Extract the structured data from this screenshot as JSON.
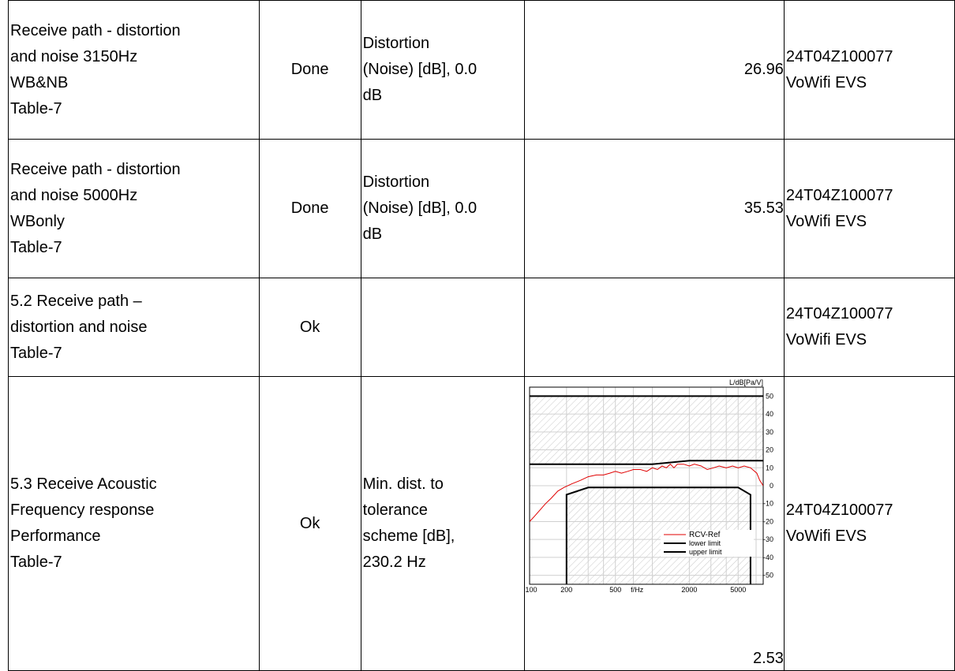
{
  "rows": [
    {
      "name_lines": [
        "Receive path - distortion",
        "and noise 3150Hz",
        "WB&NB",
        "Table-7"
      ],
      "status": "Done",
      "measurement_lines": [
        "Distortion",
        "(Noise) [dB], 0.0",
        "dB"
      ],
      "value": "26.96",
      "device_lines": [
        "24T04Z100077",
        "VoWifi EVS"
      ]
    },
    {
      "name_lines": [
        "Receive path - distortion",
        "and noise 5000Hz",
        "WBonly",
        "Table-7"
      ],
      "status": "Done",
      "measurement_lines": [
        "Distortion",
        "(Noise) [dB], 0.0",
        "dB"
      ],
      "value": "35.53",
      "device_lines": [
        "24T04Z100077",
        "VoWifi EVS"
      ]
    },
    {
      "name_lines": [
        "5.2 Receive path –",
        "distortion and noise",
        "Table-7"
      ],
      "status": "Ok",
      "measurement_lines": [],
      "value": "",
      "device_lines": [
        "24T04Z100077",
        "VoWifi EVS"
      ]
    },
    {
      "name_lines": [
        "5.3 Receive Acoustic",
        "Frequency response",
        "Performance",
        "Table-7"
      ],
      "status": "Ok",
      "measurement_lines": [
        "Min. dist. to",
        "tolerance",
        "scheme [dB],",
        "230.2 Hz"
      ],
      "value": "2.53",
      "device_lines": [
        "24T04Z100077",
        "VoWifi EVS"
      ]
    }
  ],
  "chart_data": {
    "type": "line",
    "title": "",
    "xlabel": "f/Hz",
    "ylabel": "L/dB[Pa/V]",
    "x_scale": "log",
    "xlim": [
      100,
      8000
    ],
    "ylim": [
      -55,
      55
    ],
    "x_ticks": [
      100,
      200,
      500,
      2000,
      5000
    ],
    "x_tick_labels": [
      "100",
      "200",
      "500",
      "2000",
      "5000"
    ],
    "y_ticks": [
      50,
      40,
      30,
      20,
      10,
      0,
      -10,
      -20,
      -30,
      -40,
      -50
    ],
    "y_tick_labels": [
      "50",
      "40",
      "30",
      "20",
      "10",
      "0",
      "-10",
      "-20",
      "-30",
      "-40",
      "-50"
    ],
    "grid": true,
    "legend_position": "lower-right",
    "series": [
      {
        "name": "RCV-Ref",
        "color": "#e00000",
        "points": [
          [
            100,
            -20
          ],
          [
            110,
            -17
          ],
          [
            120,
            -14
          ],
          [
            135,
            -10
          ],
          [
            150,
            -7
          ],
          [
            170,
            -3
          ],
          [
            190,
            -1
          ],
          [
            220,
            1
          ],
          [
            260,
            3
          ],
          [
            300,
            5
          ],
          [
            350,
            6
          ],
          [
            400,
            6
          ],
          [
            450,
            7
          ],
          [
            500,
            8
          ],
          [
            560,
            7
          ],
          [
            630,
            8
          ],
          [
            700,
            9
          ],
          [
            800,
            9
          ],
          [
            900,
            8
          ],
          [
            1000,
            10
          ],
          [
            1100,
            9
          ],
          [
            1200,
            11
          ],
          [
            1300,
            10
          ],
          [
            1400,
            12
          ],
          [
            1500,
            10
          ],
          [
            1600,
            12
          ],
          [
            1800,
            12
          ],
          [
            2000,
            11
          ],
          [
            2200,
            12
          ],
          [
            2500,
            11
          ],
          [
            2800,
            9
          ],
          [
            3150,
            10
          ],
          [
            3500,
            11
          ],
          [
            4000,
            10
          ],
          [
            4500,
            11
          ],
          [
            5000,
            10
          ],
          [
            5600,
            11
          ],
          [
            6300,
            10
          ],
          [
            7100,
            7
          ],
          [
            7500,
            3
          ],
          [
            8000,
            0
          ]
        ]
      },
      {
        "name": "lower limit",
        "color": "#000000",
        "points": [
          [
            200,
            -70
          ],
          [
            200,
            -5
          ],
          [
            300,
            -1
          ],
          [
            5000,
            -1
          ],
          [
            6300,
            -5
          ],
          [
            6300,
            -70
          ]
        ]
      },
      {
        "name": "upper limit",
        "color": "#000000",
        "points": [
          [
            100,
            12
          ],
          [
            1000,
            12
          ],
          [
            2000,
            14
          ],
          [
            8000,
            14
          ]
        ]
      }
    ],
    "upper_limit_top": 50
  }
}
